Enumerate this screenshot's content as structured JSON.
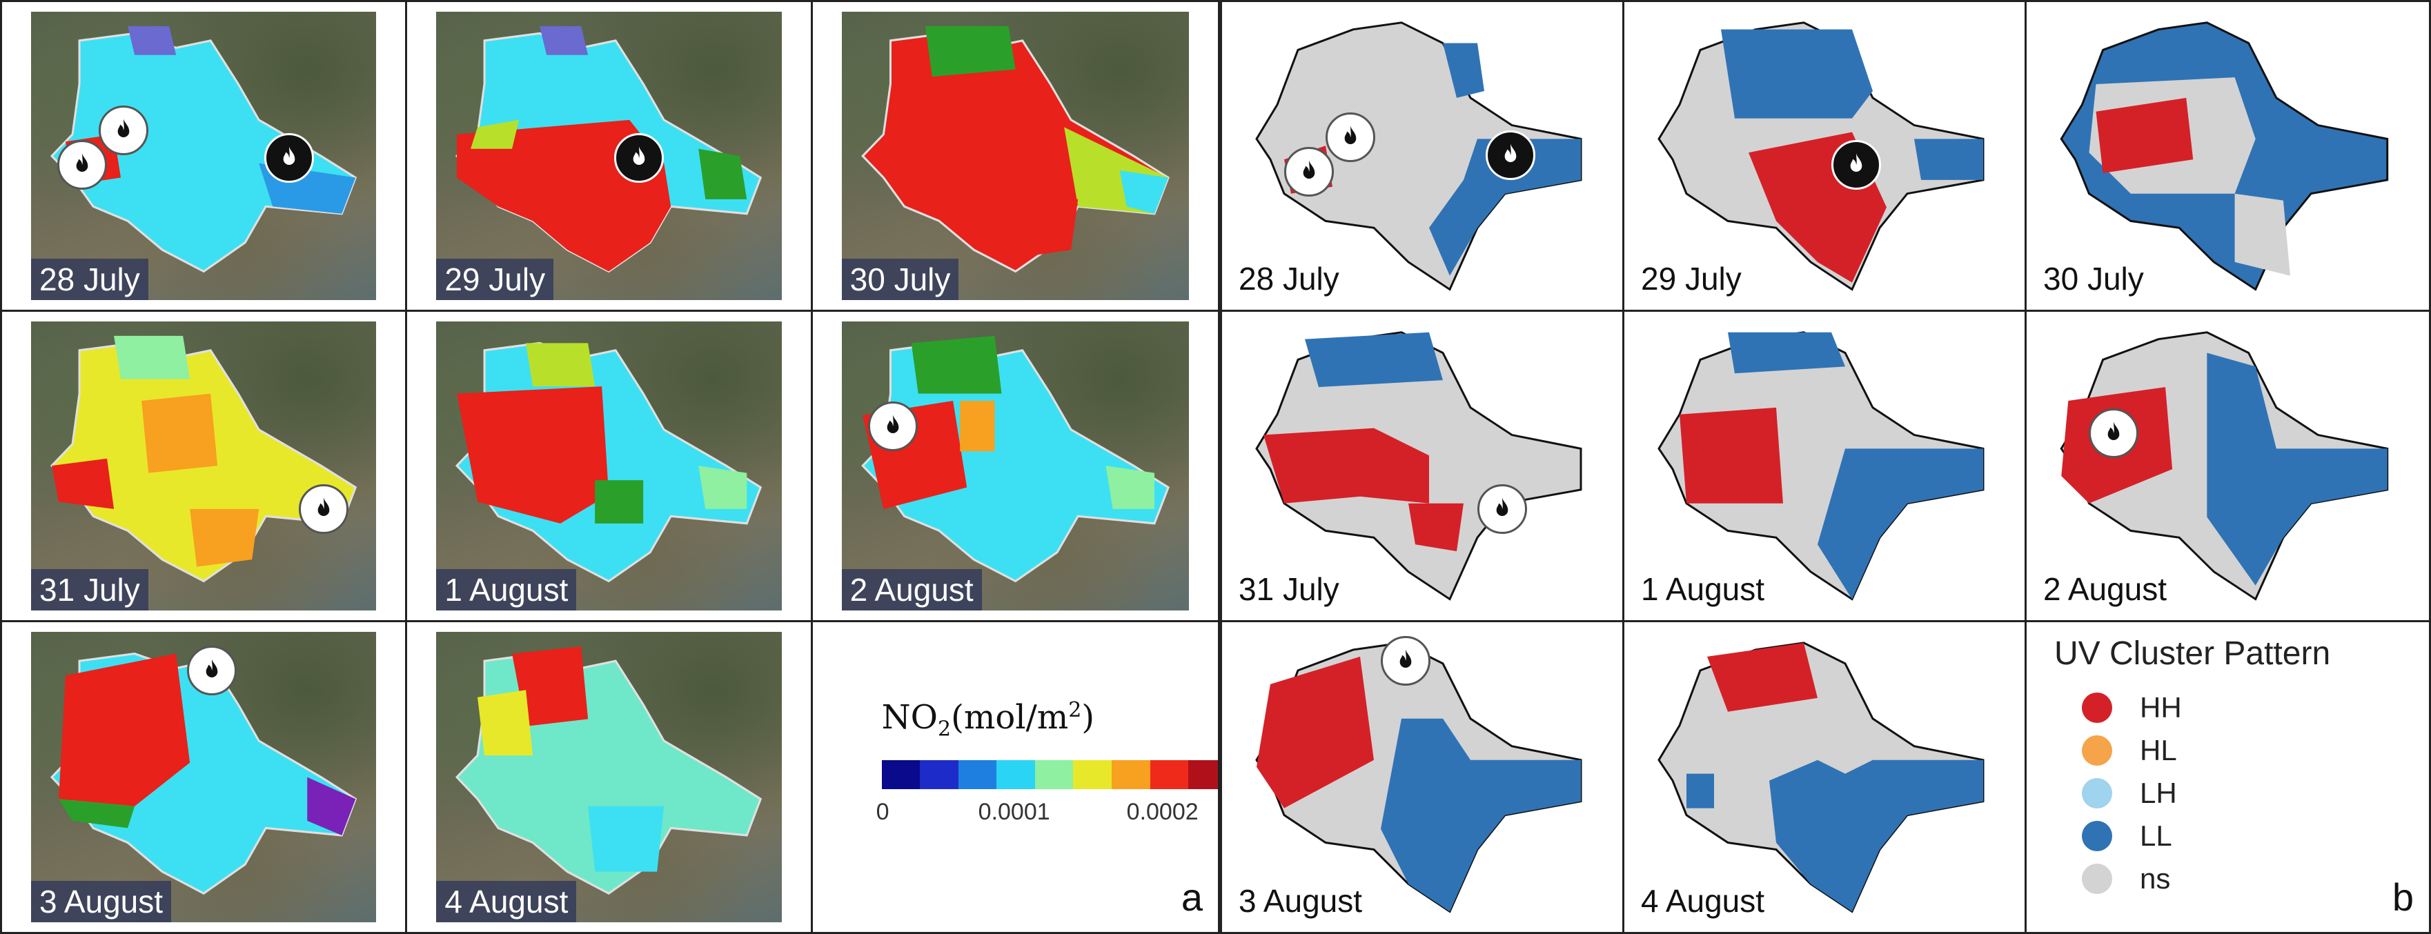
{
  "panel_a": {
    "letter": "a",
    "dates": [
      "28 July",
      "29 July",
      "30 July",
      "31 July",
      "1 August",
      "2 August",
      "3 August",
      "4 August"
    ],
    "colorbar": {
      "title_main": "NO",
      "title_sub": "2",
      "title_unit_open": "(mol/m",
      "title_sup": "2",
      "title_close": ")",
      "ticks": [
        "0",
        "0.0001",
        "0.0002"
      ],
      "colors": [
        "#0a0a8c",
        "#1d2cc8",
        "#1f7fe0",
        "#2ad4f4",
        "#8ef0a0",
        "#e8e82a",
        "#f8a020",
        "#f02a1a",
        "#b0101a"
      ]
    }
  },
  "panel_b": {
    "letter": "b",
    "dates": [
      "28 July",
      "29 July",
      "30 July",
      "31 July",
      "1 August",
      "2 August",
      "3 August",
      "4 August"
    ],
    "legend": {
      "title": "UV Cluster Pattern",
      "items": [
        {
          "label": "HH",
          "color": "#d42127"
        },
        {
          "label": "HL",
          "color": "#f5a44a"
        },
        {
          "label": "LH",
          "color": "#9fd3ee"
        },
        {
          "label": "LL",
          "color": "#2f73b5"
        },
        {
          "label": "ns",
          "color": "#d3d3d3"
        }
      ]
    }
  }
}
